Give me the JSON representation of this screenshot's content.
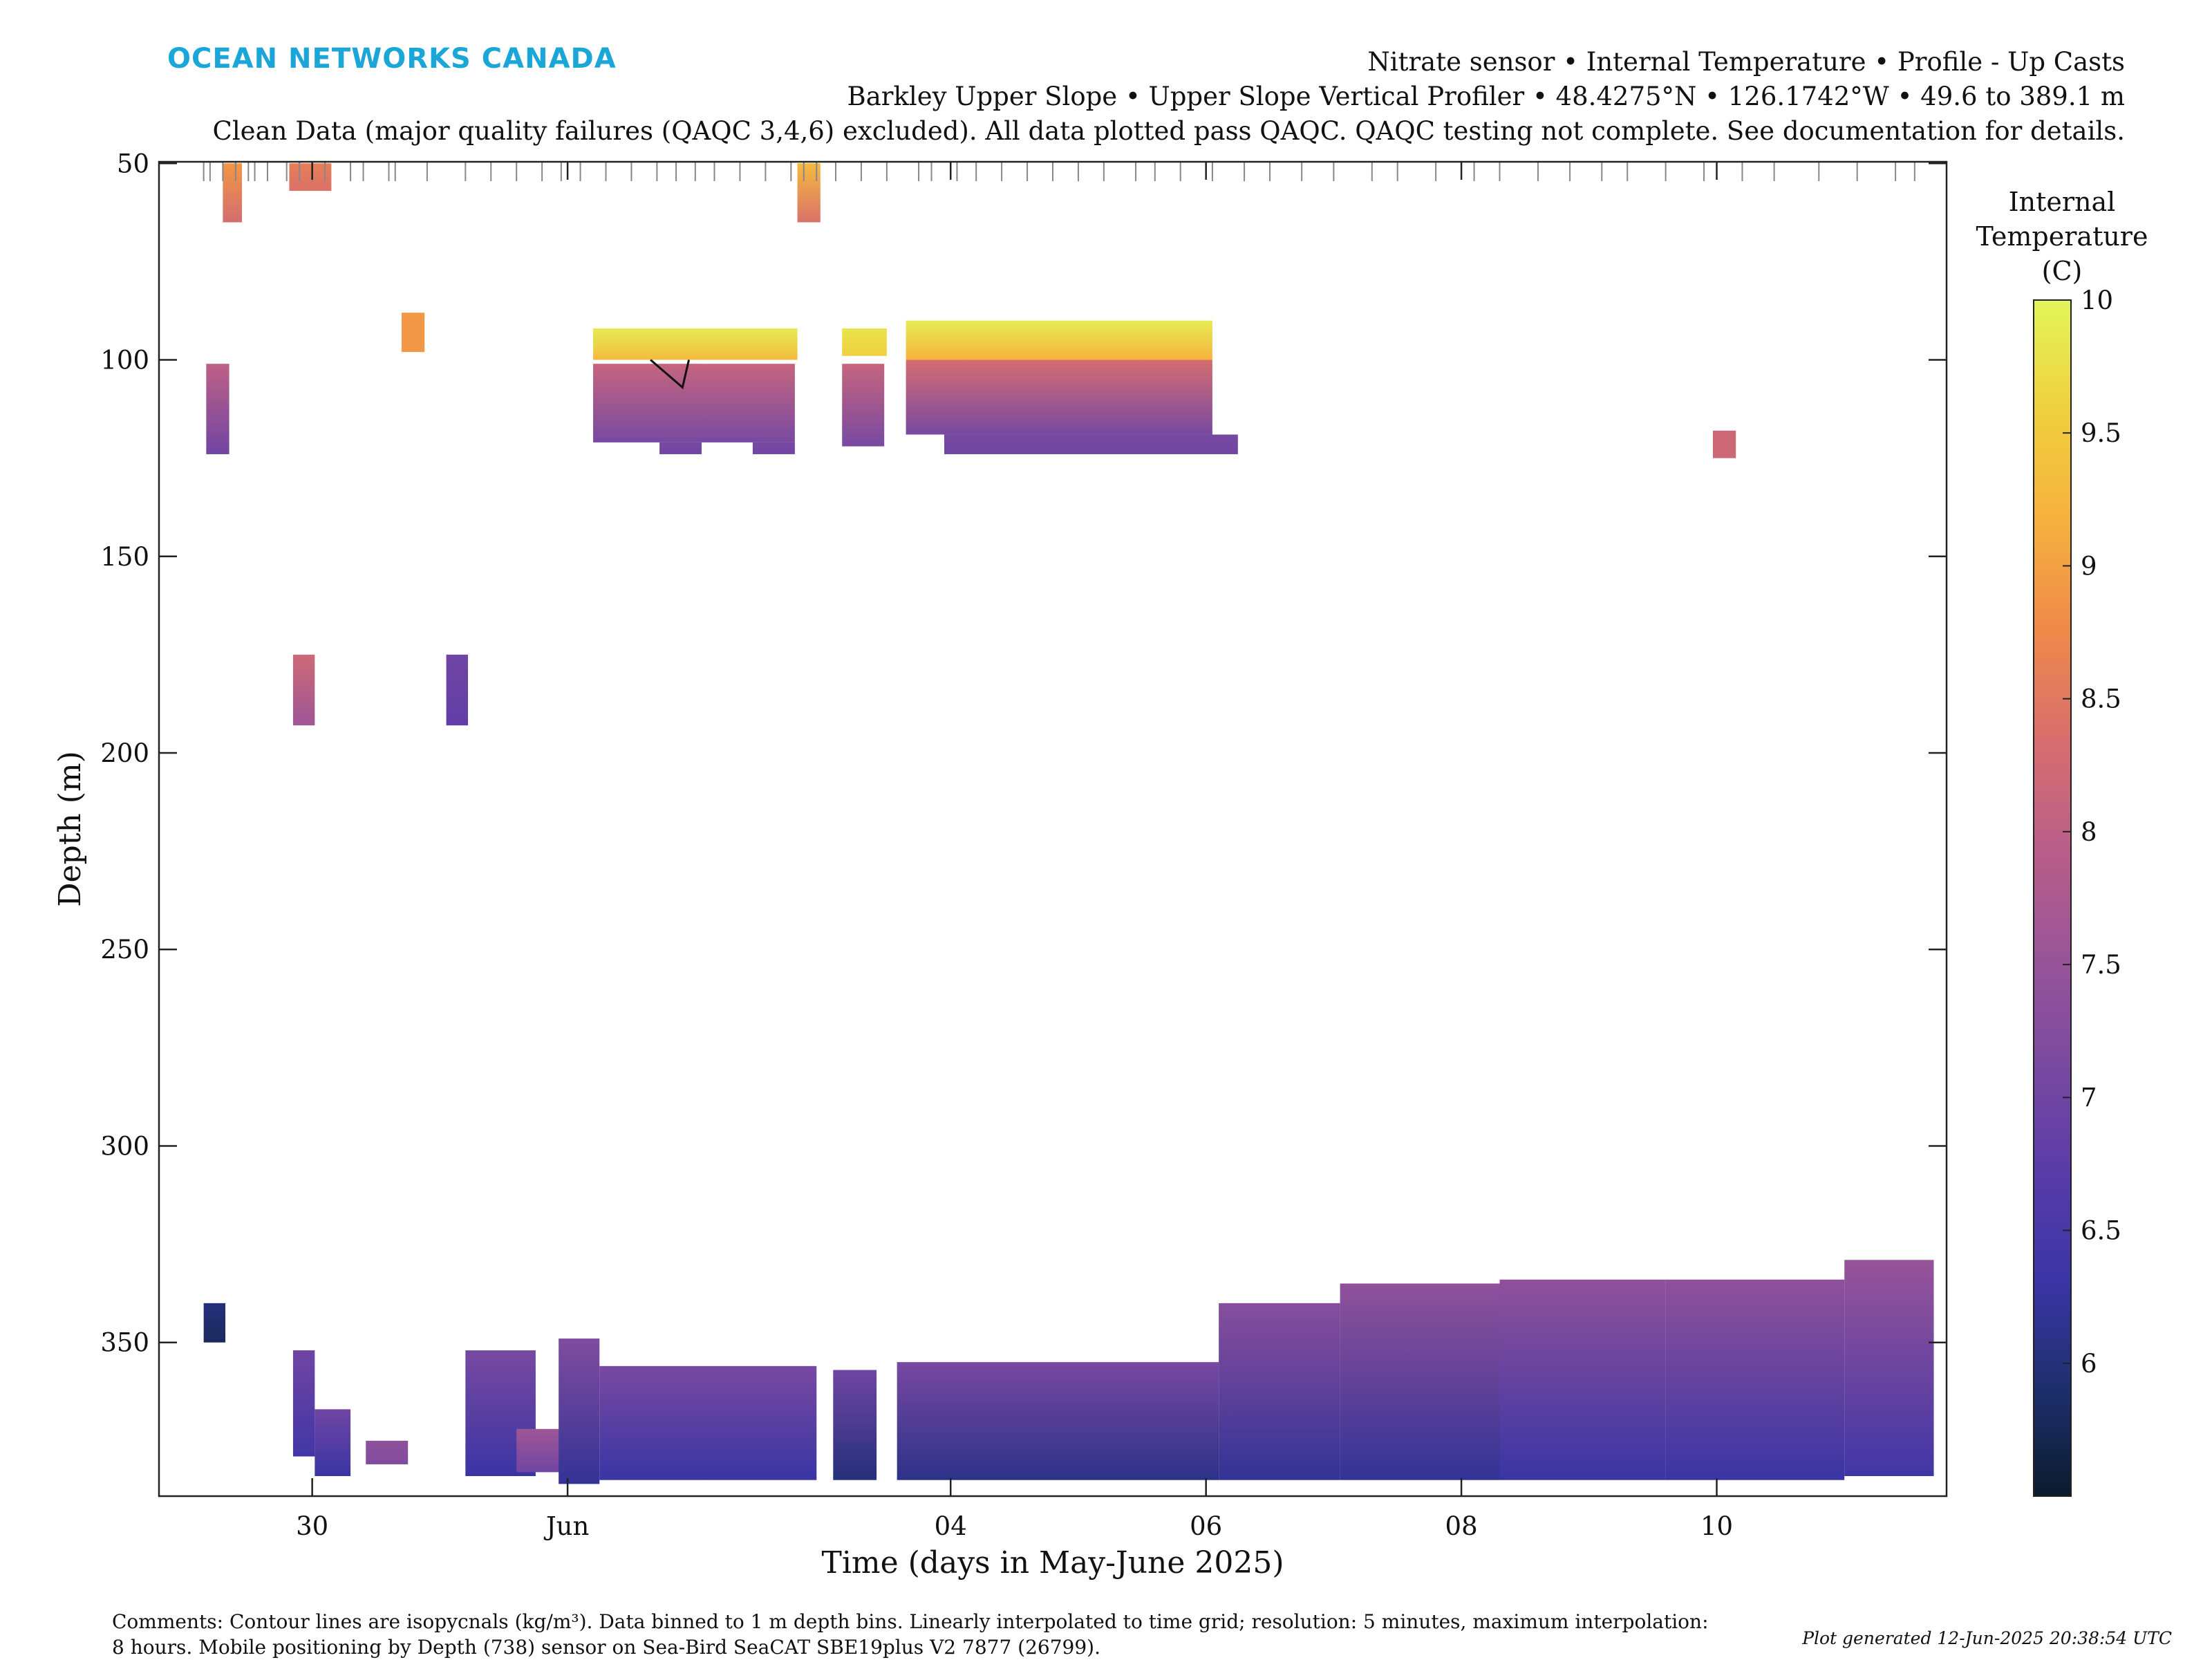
{
  "logo": "OCEAN NETWORKS CANADA",
  "header": {
    "line1": "Nitrate sensor • Internal Temperature • Profile - Up Casts",
    "line2": "Barkley Upper Slope • Upper Slope Vertical Profiler • 48.4275°N • 126.1742°W • 49.6 to 389.1 m",
    "line3": "Clean Data (major quality failures (QAQC 3,4,6) excluded). All data plotted pass QAQC. QAQC testing not complete. See documentation for details."
  },
  "footer": {
    "comments": "Comments: Contour lines are isopycnals (kg/m³). Data binned to 1 m depth bins. Linearly interpolated to time grid; resolution: 5 minutes, maximum interpolation:\n8 hours. Mobile positioning by Depth (738) sensor on Sea-Bird SeaCAT SBE19plus V2 7877 (26799).",
    "generated": "Plot generated 12-Jun-2025 20:38:54 UTC"
  },
  "colors": {
    "colormap": [
      "#0b1b2e",
      "#1f2f6e",
      "#3b35a6",
      "#5a3ca8",
      "#7b4aa0",
      "#9a5598",
      "#bb5f88",
      "#d96f6c",
      "#ef8b48",
      "#f6b23e",
      "#f0d03e",
      "#e3f55a"
    ]
  },
  "chart_data": {
    "type": "heatmap",
    "xlabel": "Time (days in May-June 2025)",
    "ylabel": "Depth (m)",
    "x_unit": "day of 2025 relative to 01-Jun (negative = May)",
    "xlim": [
      -3.2,
      10.8
    ],
    "ylim": [
      389.1,
      49.6
    ],
    "y_reversed": true,
    "xticks": [
      {
        "value": -2,
        "label": "30"
      },
      {
        "value": 0,
        "label": "Jun"
      },
      {
        "value": 3,
        "label": "04"
      },
      {
        "value": 5,
        "label": "06"
      },
      {
        "value": 7,
        "label": "08"
      },
      {
        "value": 9,
        "label": "10"
      }
    ],
    "yticks": [
      50,
      100,
      150,
      200,
      250,
      300,
      350
    ],
    "colorbar": {
      "label": "Internal Temperature (C)",
      "range": [
        5.5,
        10
      ],
      "ticks": [
        6,
        6.5,
        7,
        7.5,
        8,
        8.5,
        9,
        9.5,
        10
      ]
    },
    "grid": false,
    "cast_times": [
      -2.85,
      -2.8,
      -2.7,
      -2.6,
      -2.5,
      -2.45,
      -2.35,
      -2.2,
      -2.1,
      -2.0,
      -1.9,
      -1.7,
      -1.6,
      -1.4,
      -1.35,
      -1.1,
      -0.8,
      -0.6,
      -0.4,
      -0.2,
      -0.05,
      0.1,
      0.3,
      0.5,
      0.7,
      0.85,
      1.0,
      1.15,
      1.35,
      1.55,
      1.75,
      1.85,
      1.95,
      2.1,
      2.3,
      2.5,
      2.75,
      2.85,
      3.05,
      3.2,
      3.4,
      3.6,
      3.8,
      4.0,
      4.2,
      4.45,
      4.6,
      4.8,
      5.05,
      5.3,
      5.5,
      5.75,
      6.0,
      6.3,
      6.5,
      6.8,
      7.1,
      7.3,
      7.6,
      7.85,
      8.1,
      8.3,
      8.6,
      8.9,
      9.2,
      9.45,
      9.8,
      10.1,
      10.4,
      10.55
    ],
    "isopycnal": [
      [
        0.65,
        100
      ],
      [
        0.9,
        107
      ],
      [
        0.95,
        100
      ]
    ],
    "blocks": [
      {
        "x0": -2.7,
        "x1": -2.55,
        "y0": 50,
        "y1": 65,
        "t_top": 8.9,
        "t_bot": 8.3
      },
      {
        "x0": -2.18,
        "x1": -1.85,
        "y0": 50,
        "y1": 57,
        "t_top": 8.6,
        "t_bot": 8.4
      },
      {
        "x0": 1.8,
        "x1": 1.98,
        "y0": 50,
        "y1": 65,
        "t_top": 9.3,
        "t_bot": 8.4
      },
      {
        "x0": -1.3,
        "x1": -1.12,
        "y0": 88,
        "y1": 98,
        "t_top": 8.9,
        "t_bot": 8.9
      },
      {
        "x0": -2.83,
        "x1": -2.65,
        "y0": 101,
        "y1": 124,
        "t_top": 8.0,
        "t_bot": 7.0
      },
      {
        "x0": 0.2,
        "x1": 1.8,
        "y0": 92,
        "y1": 100,
        "t_top": 9.9,
        "t_bot": 9.3
      },
      {
        "x0": 0.2,
        "x1": 1.78,
        "y0": 101,
        "y1": 121,
        "t_top": 8.1,
        "t_bot": 7.1
      },
      {
        "x0": 0.72,
        "x1": 1.05,
        "y0": 121,
        "y1": 124,
        "t_top": 7.1,
        "t_bot": 7.0
      },
      {
        "x0": 1.45,
        "x1": 1.78,
        "y0": 121,
        "y1": 124,
        "t_top": 7.1,
        "t_bot": 7.0
      },
      {
        "x0": 2.15,
        "x1": 2.5,
        "y0": 92,
        "y1": 99,
        "t_top": 9.8,
        "t_bot": 9.6
      },
      {
        "x0": 2.15,
        "x1": 2.48,
        "y0": 101,
        "y1": 122,
        "t_top": 8.1,
        "t_bot": 7.1
      },
      {
        "x0": 2.65,
        "x1": 5.05,
        "y0": 90,
        "y1": 100,
        "t_top": 9.9,
        "t_bot": 9.2
      },
      {
        "x0": 2.65,
        "x1": 5.05,
        "y0": 100,
        "y1": 119,
        "t_top": 8.3,
        "t_bot": 7.1
      },
      {
        "x0": 2.95,
        "x1": 5.25,
        "y0": 119,
        "y1": 124,
        "t_top": 7.1,
        "t_bot": 7.0
      },
      {
        "x0": 8.97,
        "x1": 9.15,
        "y0": 118,
        "y1": 125,
        "t_top": 8.2,
        "t_bot": 8.2
      },
      {
        "x0": -2.15,
        "x1": -1.98,
        "y0": 175,
        "y1": 193,
        "t_top": 8.2,
        "t_bot": 7.6
      },
      {
        "x0": -0.95,
        "x1": -0.78,
        "y0": 175,
        "y1": 193,
        "t_top": 7.0,
        "t_bot": 6.8
      },
      {
        "x0": -2.85,
        "x1": -2.68,
        "y0": 340,
        "y1": 350,
        "t_top": 6.0,
        "t_bot": 5.8
      },
      {
        "x0": -2.15,
        "x1": -1.98,
        "y0": 352,
        "y1": 379,
        "t_top": 7.0,
        "t_bot": 6.4
      },
      {
        "x0": -1.98,
        "x1": -1.7,
        "y0": 367,
        "y1": 384,
        "t_top": 7.0,
        "t_bot": 6.3
      },
      {
        "x0": -1.58,
        "x1": -1.25,
        "y0": 375,
        "y1": 381,
        "t_top": 7.4,
        "t_bot": 7.2
      },
      {
        "x0": -0.8,
        "x1": -0.25,
        "y0": 352,
        "y1": 384,
        "t_top": 7.1,
        "t_bot": 6.3
      },
      {
        "x0": -0.4,
        "x1": -0.05,
        "y0": 372,
        "y1": 383,
        "t_top": 7.6,
        "t_bot": 7.0
      },
      {
        "x0": -0.07,
        "x1": 0.25,
        "y0": 349,
        "y1": 386,
        "t_top": 7.2,
        "t_bot": 6.2
      },
      {
        "x0": 0.25,
        "x1": 1.95,
        "y0": 356,
        "y1": 385,
        "t_top": 7.1,
        "t_bot": 6.3
      },
      {
        "x0": 2.08,
        "x1": 2.42,
        "y0": 357,
        "y1": 385,
        "t_top": 7.0,
        "t_bot": 6.0
      },
      {
        "x0": 2.58,
        "x1": 5.1,
        "y0": 355,
        "y1": 385,
        "t_top": 7.1,
        "t_bot": 6.1
      },
      {
        "x0": 5.1,
        "x1": 6.05,
        "y0": 340,
        "y1": 385,
        "t_top": 7.3,
        "t_bot": 6.2
      },
      {
        "x0": 6.05,
        "x1": 7.3,
        "y0": 335,
        "y1": 385,
        "t_top": 7.4,
        "t_bot": 6.2
      },
      {
        "x0": 7.3,
        "x1": 8.6,
        "y0": 334,
        "y1": 385,
        "t_top": 7.4,
        "t_bot": 6.3
      },
      {
        "x0": 8.6,
        "x1": 10.0,
        "y0": 334,
        "y1": 385,
        "t_top": 7.4,
        "t_bot": 6.3
      },
      {
        "x0": 10.0,
        "x1": 10.7,
        "y0": 329,
        "y1": 384,
        "t_top": 7.5,
        "t_bot": 6.4
      }
    ]
  }
}
